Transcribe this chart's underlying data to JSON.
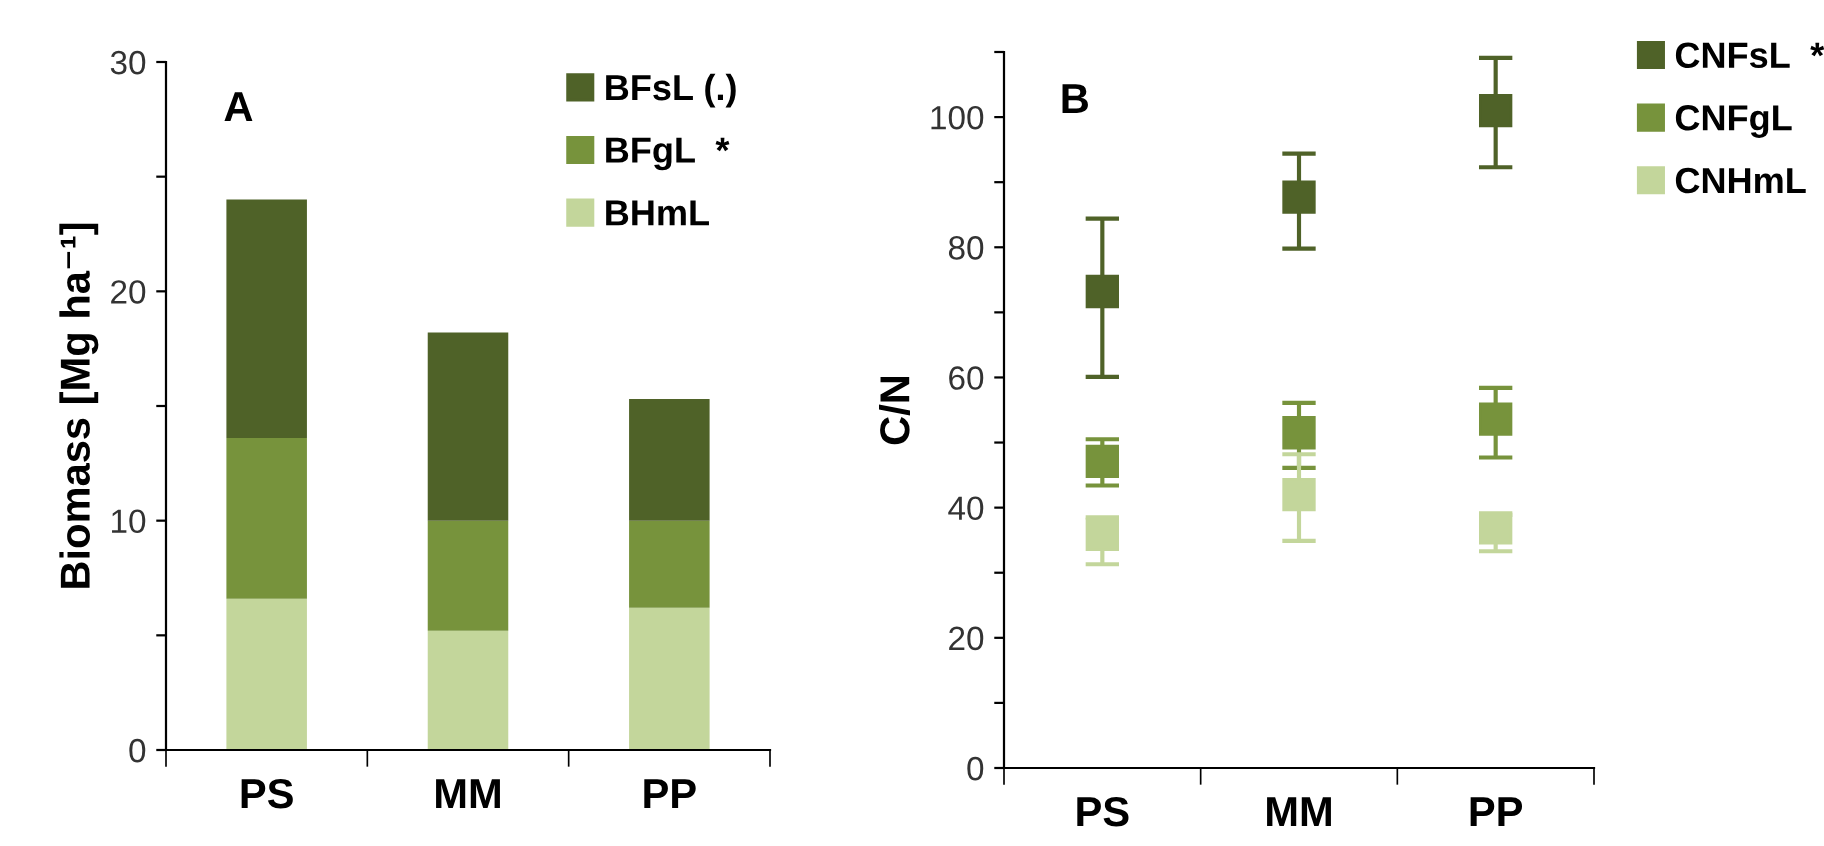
{
  "chart_data": [
    {
      "type": "bar",
      "stacked": true,
      "ylabel": "Biomass [Mg ha⁻¹]",
      "annotations": [
        "A"
      ],
      "categories": [
        "PS",
        "MM",
        "PP"
      ],
      "ylim": [
        0,
        30
      ],
      "yticks": [
        0,
        {
          "value": 5,
          "label": null
        },
        10,
        {
          "value": 15,
          "label": null
        },
        20,
        {
          "value": 25,
          "label": null
        },
        30
      ],
      "grid": false,
      "legend": "top right",
      "series": [
        {
          "name": "BHmL",
          "color": "#c3d69b",
          "values": [
            6.6,
            5.2,
            6.2
          ]
        },
        {
          "name": "BFgL  *",
          "color": "#77933c",
          "values": [
            7.0,
            4.8,
            3.8
          ]
        },
        {
          "name": "BFsL (.)",
          "color": "#4f6228",
          "values": [
            10.4,
            8.2,
            5.3
          ]
        }
      ]
    },
    {
      "type": "scatter",
      "ylabel": "C/N",
      "annotations": [
        "B"
      ],
      "categories": [
        "PS",
        "MM",
        "PP"
      ],
      "ylim": [
        0,
        110
      ],
      "yticks": [
        0,
        {
          "value": 10,
          "label": null
        },
        20,
        {
          "value": 30,
          "label": null
        },
        40,
        {
          "value": 50,
          "label": null
        },
        60,
        {
          "value": 70,
          "label": null
        },
        80,
        {
          "value": 90,
          "label": null
        },
        100,
        {
          "value": 110,
          "label": null
        }
      ],
      "grid": false,
      "legend": "right",
      "marker": "square",
      "series": [
        {
          "name": "CNFsL  *",
          "color": "#4f6228",
          "values": [
            73.2,
            87.7,
            101
          ],
          "errors": [
            [
              60.1,
              84.4
            ],
            [
              79.8,
              94.4
            ],
            [
              92.3,
              109.1
            ]
          ]
        },
        {
          "name": "CNFgL",
          "color": "#77933c",
          "values": [
            47.1,
            51.5,
            53.6
          ],
          "errors": [
            [
              43.4,
              50.5
            ],
            [
              46.1,
              56.1
            ],
            [
              47.7,
              58.4
            ]
          ]
        },
        {
          "name": "CNHmL",
          "color": "#c3d69b",
          "values": [
            35.9,
            42.0,
            36.9
          ],
          "errors": [
            [
              31.3,
              38.5
            ],
            [
              34.9,
              48.2
            ],
            [
              33.3,
              38.9
            ]
          ]
        }
      ]
    }
  ]
}
